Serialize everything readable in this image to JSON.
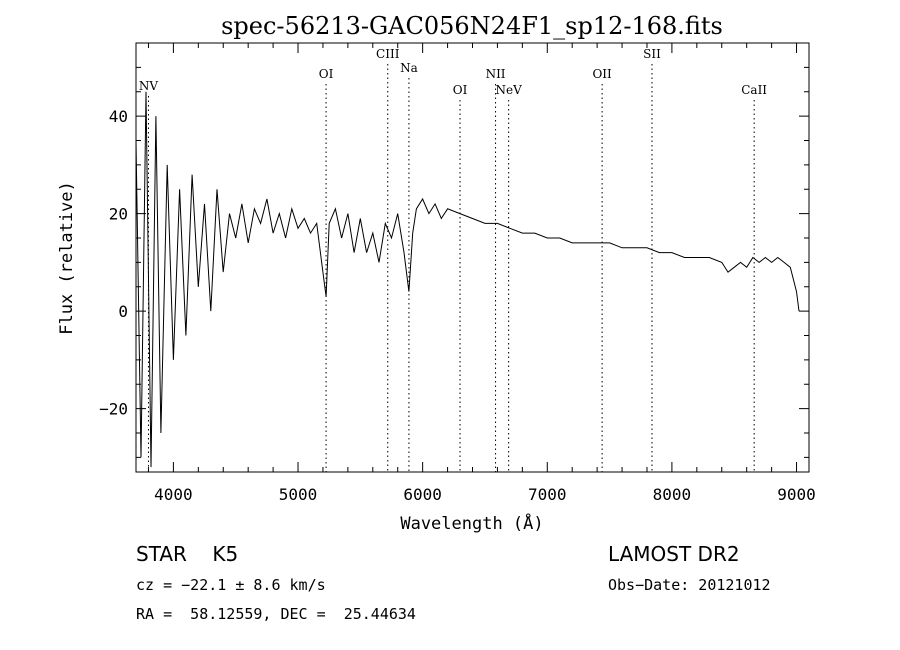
{
  "chart_data": {
    "type": "line",
    "title": "spec-56213-GAC056N24F1_sp12-168.fits",
    "xlabel": "Wavelength (Å)",
    "ylabel": "Flux (relative)",
    "xlim": [
      3700,
      9100
    ],
    "ylim": [
      -33,
      55
    ],
    "x_ticks": [
      4000,
      5000,
      6000,
      7000,
      8000,
      9000
    ],
    "y_ticks": [
      -20,
      0,
      20,
      40
    ],
    "grid": false,
    "lines": [
      {
        "label": "NV",
        "wavelength": 3800
      },
      {
        "label": "OI",
        "wavelength": 5225
      },
      {
        "label": "CIII",
        "wavelength": 5720
      },
      {
        "label": "Na",
        "wavelength": 5890
      },
      {
        "label": "OI",
        "wavelength": 6300
      },
      {
        "label": "NII",
        "wavelength": 6585
      },
      {
        "label": "NeV",
        "wavelength": 6690
      },
      {
        "label": "OII",
        "wavelength": 7440
      },
      {
        "label": "SII",
        "wavelength": 7840
      },
      {
        "label": "CaII",
        "wavelength": 8660
      }
    ],
    "series": [
      {
        "x": [
          3700,
          3740,
          3780,
          3820,
          3860,
          3900,
          3950,
          4000,
          4050,
          4100,
          4150,
          4200,
          4250,
          4300,
          4350,
          4400,
          4450,
          4500,
          4550,
          4600,
          4650,
          4700,
          4750,
          4800,
          4850,
          4900,
          4950,
          5000,
          5050,
          5100,
          5150,
          5200,
          5225,
          5250,
          5300,
          5350,
          5400,
          5450,
          5500,
          5550,
          5600,
          5650,
          5700,
          5750,
          5800,
          5850,
          5890,
          5920,
          5950,
          6000,
          6050,
          6100,
          6150,
          6200,
          6300,
          6400,
          6500,
          6600,
          6700,
          6800,
          6900,
          7000,
          7100,
          7200,
          7300,
          7400,
          7500,
          7600,
          7700,
          7800,
          7900,
          8000,
          8100,
          8200,
          8300,
          8400,
          8450,
          8500,
          8550,
          8600,
          8650,
          8700,
          8750,
          8800,
          8850,
          8900,
          8950,
          9000,
          9020
        ],
        "y": [
          35,
          -30,
          45,
          -32,
          40,
          -25,
          30,
          -10,
          25,
          -5,
          28,
          5,
          22,
          0,
          25,
          8,
          20,
          15,
          22,
          14,
          21,
          18,
          23,
          16,
          20,
          15,
          21,
          17,
          19,
          16,
          18,
          8,
          3,
          18,
          21,
          15,
          20,
          12,
          19,
          12,
          16,
          10,
          18,
          15,
          20,
          12,
          4,
          16,
          21,
          23,
          20,
          22,
          19,
          21,
          20,
          19,
          18,
          18,
          17,
          16,
          16,
          15,
          15,
          14,
          14,
          14,
          14,
          13,
          13,
          13,
          12,
          12,
          11,
          11,
          11,
          10,
          8,
          9,
          10,
          9,
          11,
          10,
          11,
          10,
          11,
          10,
          9,
          4,
          0
        ]
      }
    ]
  },
  "info": {
    "class_line": "STAR    K5",
    "survey": "LAMOST DR2",
    "cz_line": "cz = −22.1 ± 8.6 km/s",
    "obs_date": "Obs−Date: 20121012",
    "coords": "RA =  58.12559, DEC =  25.44634"
  }
}
